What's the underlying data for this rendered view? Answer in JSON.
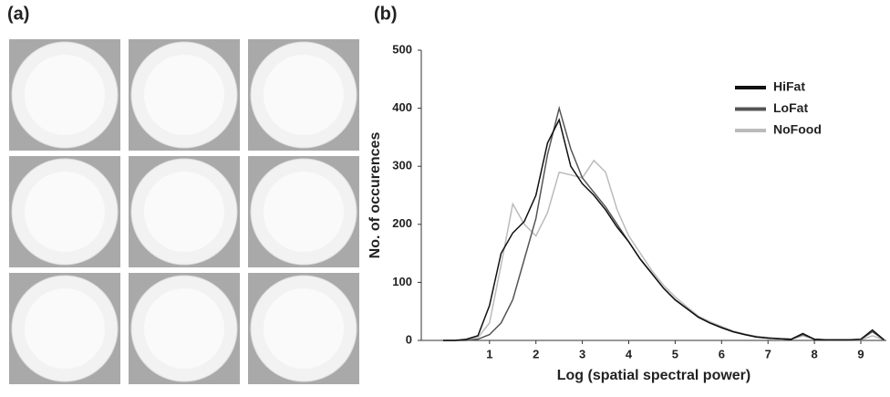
{
  "panel_a": {
    "label": "(a)"
  },
  "chart_data": {
    "type": "line",
    "panel_label": "(b)",
    "x_label": "Log (spatial spectral power)",
    "y_label": "No. of occurences",
    "x": [
      0,
      0.25,
      0.5,
      0.75,
      1,
      1.25,
      1.5,
      1.75,
      2,
      2.25,
      2.5,
      2.75,
      3,
      3.25,
      3.5,
      3.75,
      4,
      4.25,
      4.5,
      4.75,
      5,
      5.25,
      5.5,
      5.75,
      6,
      6.25,
      6.5,
      6.75,
      7,
      7.25,
      7.5,
      7.75,
      8,
      8.25,
      8.5,
      8.75,
      9,
      9.25,
      9.5
    ],
    "series": [
      {
        "name": "HiFat",
        "color": "#111111",
        "values": [
          0,
          0,
          2,
          8,
          60,
          150,
          185,
          205,
          250,
          340,
          380,
          300,
          270,
          250,
          225,
          195,
          170,
          140,
          115,
          90,
          70,
          55,
          40,
          30,
          22,
          15,
          10,
          6,
          4,
          3,
          2,
          12,
          2,
          1,
          1,
          1,
          2,
          18,
          1
        ]
      },
      {
        "name": "LoFat",
        "color": "#555555",
        "values": [
          0,
          0,
          0,
          2,
          10,
          30,
          70,
          140,
          210,
          320,
          400,
          330,
          280,
          255,
          230,
          200,
          170,
          140,
          115,
          90,
          70,
          55,
          40,
          30,
          22,
          15,
          10,
          6,
          4,
          3,
          2,
          10,
          2,
          1,
          1,
          1,
          2,
          15,
          1
        ]
      },
      {
        "name": "NoFood",
        "color": "#bbbbbb",
        "values": [
          0,
          0,
          1,
          5,
          30,
          130,
          235,
          200,
          180,
          220,
          290,
          285,
          280,
          310,
          290,
          225,
          180,
          150,
          120,
          95,
          75,
          58,
          42,
          32,
          24,
          16,
          11,
          7,
          5,
          3,
          2,
          8,
          2,
          1,
          1,
          1,
          1,
          8,
          1
        ]
      }
    ],
    "xlim": [
      -0.47,
      9.55
    ],
    "ylim": [
      0,
      500
    ],
    "xticks": [
      1,
      2,
      3,
      4,
      5,
      6,
      7,
      8,
      9
    ],
    "yticks": [
      0,
      100,
      200,
      300,
      400,
      500
    ],
    "legend": "upper-right"
  }
}
